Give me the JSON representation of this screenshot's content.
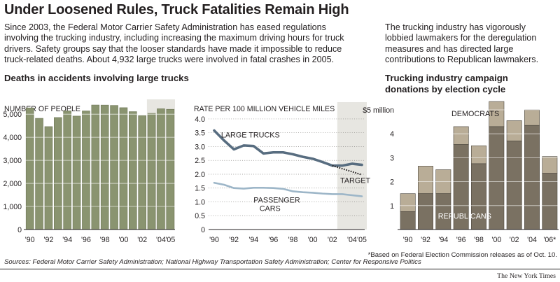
{
  "headline": "Under Loosened Rules, Truck Fatalities Remain High",
  "intro": "Since 2003, the Federal Motor Carrier Safety Administration has eased regulations involving the trucking industry, including increasing the maximum driving hours for truck drivers. Safety groups say that the looser standards have made it impossible to reduce truck-related deaths. About 4,932 large trucks were involved in fatal crashes in 2005.",
  "side_text": "The trucking industry has vigorously lobbied lawmakers for the deregulation measures and has directed large contributions to Republican lawmakers.",
  "sources": "Sources: Federal Motor Carrier Safety Administration; National Highway Transportation Safety Administration; Center for Responsive Politics",
  "footnote": "*Based on Federal Election Commission releases as of Oct. 10.",
  "credit": "The New York Times",
  "colors": {
    "bar_green": "#8a9470",
    "bar_green_edge": "#6d7656",
    "shade": "#e7e6e1",
    "line_trucks": "#586d80",
    "line_cars": "#9db6c8",
    "target_line": "#231f20",
    "dem": "#b9ad97",
    "rep": "#7a7162",
    "edge": "#4a453d",
    "axis": "#231f20",
    "grid": "#ffffff"
  },
  "chart_data": [
    {
      "id": "deaths",
      "type": "bar",
      "title": "Deaths in accidents involving large trucks",
      "ylabel": "NUMBER OF PEOPLE",
      "x": [
        1990,
        1991,
        1992,
        1993,
        1994,
        1995,
        1996,
        1997,
        1998,
        1999,
        2000,
        2001,
        2002,
        2003,
        2004,
        2005
      ],
      "values": [
        5272,
        4821,
        4462,
        4856,
        5144,
        4918,
        5142,
        5398,
        5395,
        5380,
        5282,
        5111,
        4939,
        5036,
        5235,
        5212
      ],
      "xtick_labels": [
        "'90",
        "",
        "'92",
        "",
        "'94",
        "",
        "'96",
        "",
        "'98",
        "",
        "'00",
        "",
        "'02",
        "",
        "'04",
        "'05"
      ],
      "ylim": [
        0,
        5400
      ],
      "yticks": [
        0,
        1000,
        2000,
        3000,
        4000,
        5000
      ],
      "ytick_labels": [
        "0",
        "1,000",
        "2,000",
        "3,000",
        "4,000",
        "5,000"
      ],
      "shaded_from": 2003,
      "grid": true
    },
    {
      "id": "rate",
      "type": "line",
      "ylabel": "RATE PER 100 MILLION VEHICLE MILES",
      "x": [
        1990,
        1991,
        1992,
        1993,
        1994,
        1995,
        1996,
        1997,
        1998,
        1999,
        2000,
        2001,
        2002,
        2003,
        2004,
        2005
      ],
      "xtick_labels": [
        "'90",
        "",
        "'92",
        "",
        "'94",
        "",
        "'96",
        "",
        "'98",
        "",
        "'00",
        "",
        "'02",
        "",
        "'04",
        "'05"
      ],
      "ylim": [
        0,
        4.1
      ],
      "yticks": [
        0,
        0.5,
        1,
        1.5,
        2,
        2.5,
        3,
        3.5,
        4
      ],
      "ytick_labels": [
        "0",
        "0.5",
        "1.0",
        "1.5",
        "2.0",
        "2.5",
        "3.0",
        "3.5",
        "4.0"
      ],
      "shaded_from": 2003,
      "series": [
        {
          "name": "LARGE TRUCKS",
          "values": [
            3.58,
            3.22,
            2.9,
            3.04,
            3.02,
            2.75,
            2.79,
            2.79,
            2.72,
            2.63,
            2.56,
            2.44,
            2.31,
            2.31,
            2.38,
            2.34
          ]
        },
        {
          "name": "PASSENGER CARS",
          "values": [
            1.69,
            1.62,
            1.5,
            1.48,
            1.51,
            1.51,
            1.5,
            1.47,
            1.38,
            1.35,
            1.33,
            1.3,
            1.28,
            1.28,
            1.24,
            1.2
          ]
        },
        {
          "name": "TARGET",
          "style": "dotted",
          "x": [
            2002,
            2005
          ],
          "values": [
            2.31,
            1.98
          ]
        }
      ],
      "annotations": [
        {
          "text": "LARGE TRUCKS",
          "series": "LARGE TRUCKS"
        },
        {
          "text": "PASSENGER",
          "series": "PASSENGER CARS"
        },
        {
          "text": "CARS",
          "series": "PASSENGER CARS"
        },
        {
          "text": "TARGET",
          "series": "TARGET"
        }
      ]
    },
    {
      "id": "donations",
      "type": "bar",
      "stacked": true,
      "title": "Trucking industry campaign donations by election cycle",
      "categories": [
        "'90",
        "'92",
        "'94",
        "'96",
        "'98",
        "'00",
        "'02",
        "'04",
        "'06*"
      ],
      "xtick_labels": [
        "'90",
        "'92",
        "'94",
        "'96",
        "'98",
        "'00",
        "'02",
        "'04",
        "'06*"
      ],
      "ylim": [
        0,
        5
      ],
      "yticks": [
        1,
        2,
        3,
        4,
        5
      ],
      "ytick_labels": [
        "1",
        "2",
        "3",
        "4",
        "$5 million"
      ],
      "series": [
        {
          "name": "REPUBLICANS",
          "values": [
            0.75,
            1.5,
            1.5,
            3.55,
            2.75,
            4.3,
            3.7,
            4.35,
            2.35
          ]
        },
        {
          "name": "DEMOCRATS",
          "values": [
            0.75,
            1.15,
            1.0,
            0.75,
            0.75,
            1.05,
            0.85,
            0.65,
            0.7
          ]
        }
      ],
      "grid": true
    }
  ]
}
